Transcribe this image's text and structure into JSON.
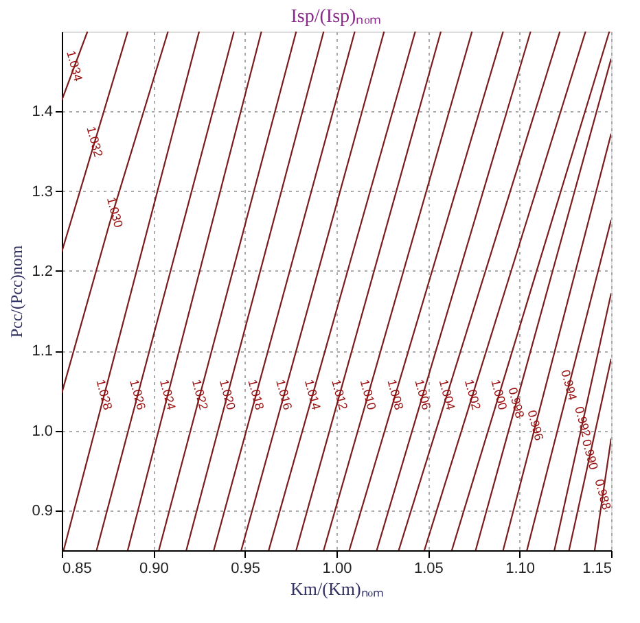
{
  "chart_data": {
    "type": "line",
    "title": "Isp/(Isp)ₙₒₘ",
    "xlabel": "Km/(Km)ₙₒₘ",
    "ylabel": "Pcc/(Pcc)nom",
    "xlim": [
      0.85,
      1.15
    ],
    "ylim": [
      0.85,
      1.5
    ],
    "xticks": [
      {
        "value": 0.85,
        "label": "0.85"
      },
      {
        "value": 0.9,
        "label": "0.90"
      },
      {
        "value": 0.95,
        "label": "0.95"
      },
      {
        "value": 1.0,
        "label": "1.00"
      },
      {
        "value": 1.05,
        "label": "1.05"
      },
      {
        "value": 1.1,
        "label": "1.10"
      },
      {
        "value": 1.15,
        "label": "1.15"
      }
    ],
    "yticks": [
      {
        "value": 0.9,
        "label": "0.9"
      },
      {
        "value": 1.0,
        "label": "1.0"
      },
      {
        "value": 1.1,
        "label": "1.1"
      },
      {
        "value": 1.2,
        "label": "1.2"
      },
      {
        "value": 1.3,
        "label": "1.3"
      },
      {
        "value": 1.4,
        "label": "1.4"
      }
    ],
    "grid": true,
    "legend": false,
    "marker": "none",
    "line_style": "solid",
    "series": [
      {
        "name": "1.034",
        "color": "#7a1c1c",
        "x": [
          0.85,
          0.864
        ],
        "values": [
          1.414,
          1.5
        ]
      },
      {
        "name": "1.032",
        "color": "#7a1c1c",
        "x": [
          0.85,
          0.886
        ],
        "values": [
          1.224,
          1.5
        ]
      },
      {
        "name": "1.030",
        "color": "#7a1c1c",
        "x": [
          0.85,
          0.876,
          0.908
        ],
        "values": [
          1.047,
          1.259,
          1.5
        ]
      },
      {
        "name": "1.028",
        "color": "#7a1c1c",
        "x": [
          0.851,
          0.925
        ],
        "values": [
          0.85,
          1.5
        ]
      },
      {
        "name": "1.026",
        "color": "#7a1c1c",
        "x": [
          0.869,
          0.944
        ],
        "values": [
          0.85,
          1.5
        ]
      },
      {
        "name": "1.024",
        "color": "#7a1c1c",
        "x": [
          0.886,
          0.959
        ],
        "values": [
          0.85,
          1.5
        ]
      },
      {
        "name": "1.022",
        "color": "#7a1c1c",
        "x": [
          0.903,
          0.978
        ],
        "values": [
          0.85,
          1.5
        ]
      },
      {
        "name": "1.020",
        "color": "#7a1c1c",
        "x": [
          0.918,
          0.993
        ],
        "values": [
          0.85,
          1.5
        ]
      },
      {
        "name": "1.018",
        "color": "#7a1c1c",
        "x": [
          0.933,
          1.01
        ],
        "values": [
          0.85,
          1.5
        ]
      },
      {
        "name": "1.016",
        "color": "#7a1c1c",
        "x": [
          0.948,
          1.026
        ],
        "values": [
          0.85,
          1.5
        ]
      },
      {
        "name": "1.014",
        "color": "#7a1c1c",
        "x": [
          0.963,
          1.043
        ],
        "values": [
          0.85,
          1.5
        ]
      },
      {
        "name": "1.012",
        "color": "#7a1c1c",
        "x": [
          0.978,
          1.057
        ],
        "values": [
          0.85,
          1.5
        ]
      },
      {
        "name": "1.010",
        "color": "#7a1c1c",
        "x": [
          0.993,
          1.074
        ],
        "values": [
          0.85,
          1.5
        ]
      },
      {
        "name": "1.008",
        "color": "#7a1c1c",
        "x": [
          1.007,
          1.091
        ],
        "values": [
          0.85,
          1.5
        ]
      },
      {
        "name": "1.006",
        "color": "#7a1c1c",
        "x": [
          1.022,
          1.106
        ],
        "values": [
          0.85,
          1.5
        ]
      },
      {
        "name": "1.004",
        "color": "#7a1c1c",
        "x": [
          1.034,
          1.122
        ],
        "values": [
          0.85,
          1.5
        ]
      },
      {
        "name": "1.002",
        "color": "#7a1c1c",
        "x": [
          1.048,
          1.136
        ],
        "values": [
          0.85,
          1.5
        ]
      },
      {
        "name": "1.000",
        "color": "#7a1c1c",
        "x": [
          1.063,
          1.149
        ],
        "values": [
          0.85,
          1.5
        ]
      },
      {
        "name": "0.998",
        "color": "#7a1c1c",
        "x": [
          1.076,
          1.15
        ],
        "values": [
          0.85,
          1.466
        ]
      },
      {
        "name": "0.996",
        "color": "#7a1c1c",
        "x": [
          1.091,
          1.15
        ],
        "values": [
          0.85,
          1.372
        ]
      },
      {
        "name": "0.994",
        "color": "#7a1c1c",
        "x": [
          1.104,
          1.15
        ],
        "values": [
          0.85,
          1.264
        ]
      },
      {
        "name": "0.992",
        "color": "#7a1c1c",
        "x": [
          1.119,
          1.15
        ],
        "values": [
          0.85,
          1.172
        ]
      },
      {
        "name": "0.990",
        "color": "#7a1c1c",
        "x": [
          1.127,
          1.15
        ],
        "values": [
          0.85,
          1.09
        ]
      },
      {
        "name": "0.988",
        "color": "#7a1c1c",
        "x": [
          1.141,
          1.15
        ],
        "values": [
          0.85,
          0.99
        ]
      }
    ]
  }
}
